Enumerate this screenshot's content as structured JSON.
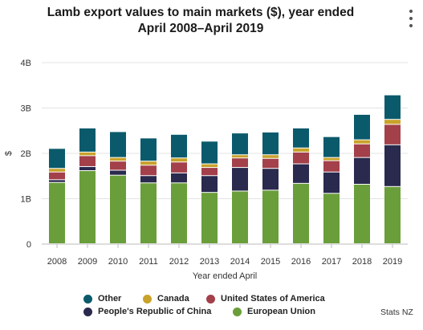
{
  "title": "Lamb export values to main markets ($), year ended April 2008–April 2019",
  "source": "Stats NZ",
  "chart_data": {
    "type": "bar",
    "stacked": true,
    "title": "Lamb export values to main markets ($), year ended April 2008–April 2019",
    "xlabel": "Year ended April",
    "ylabel": "$",
    "ylim": [
      0,
      4000000000
    ],
    "yticks": [
      0,
      1000000000,
      2000000000,
      3000000000,
      4000000000
    ],
    "ytick_labels": [
      "0",
      "1B",
      "2B",
      "3B",
      "4B"
    ],
    "grid": true,
    "categories": [
      "2008",
      "2009",
      "2010",
      "2011",
      "2012",
      "2013",
      "2014",
      "2015",
      "2016",
      "2017",
      "2018",
      "2019"
    ],
    "series": [
      {
        "name": "European Union",
        "color": "#6a9e3a",
        "values": [
          1350000000,
          1610000000,
          1510000000,
          1340000000,
          1340000000,
          1130000000,
          1160000000,
          1180000000,
          1330000000,
          1110000000,
          1310000000,
          1260000000
        ]
      },
      {
        "name": "People's Republic of China",
        "color": "#2a2a4e",
        "values": [
          60000000,
          90000000,
          110000000,
          160000000,
          220000000,
          370000000,
          520000000,
          480000000,
          430000000,
          470000000,
          590000000,
          920000000
        ]
      },
      {
        "name": "United States of America",
        "color": "#a3404a",
        "values": [
          170000000,
          240000000,
          200000000,
          230000000,
          240000000,
          180000000,
          210000000,
          220000000,
          260000000,
          250000000,
          300000000,
          450000000
        ]
      },
      {
        "name": "Canada",
        "color": "#c9a22a",
        "values": [
          80000000,
          80000000,
          80000000,
          90000000,
          90000000,
          80000000,
          70000000,
          80000000,
          90000000,
          70000000,
          90000000,
          110000000
        ]
      },
      {
        "name": "Other",
        "color": "#0b5a6b",
        "values": [
          440000000,
          530000000,
          570000000,
          510000000,
          520000000,
          500000000,
          480000000,
          500000000,
          440000000,
          460000000,
          560000000,
          540000000
        ]
      }
    ],
    "legend": {
      "position": "bottom",
      "order": [
        "Other",
        "Canada",
        "United States of America",
        "People's Republic of China",
        "European Union"
      ]
    }
  }
}
